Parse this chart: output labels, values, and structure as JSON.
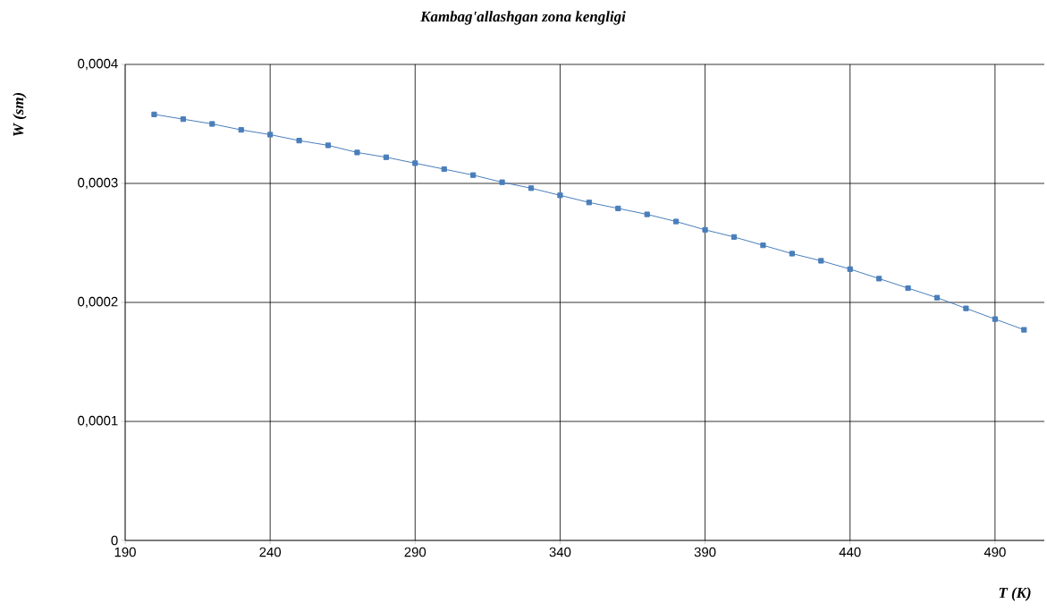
{
  "chart_data": {
    "type": "line",
    "title": "Kambag'allashgan zona kengligi",
    "xlabel": "T (K)",
    "ylabel": "W (sm)",
    "x": [
      200,
      210,
      220,
      230,
      240,
      250,
      260,
      270,
      280,
      290,
      300,
      310,
      320,
      330,
      340,
      350,
      360,
      370,
      380,
      390,
      400,
      410,
      420,
      430,
      440,
      450,
      460,
      470,
      480,
      490,
      500
    ],
    "series": [
      {
        "color": "#4a7ebb",
        "values": [
          0.000358,
          0.000354,
          0.00035,
          0.000345,
          0.000341,
          0.000336,
          0.000332,
          0.000326,
          0.000322,
          0.000317,
          0.000312,
          0.000307,
          0.000301,
          0.000296,
          0.00029,
          0.000284,
          0.000279,
          0.000274,
          0.000268,
          0.000261,
          0.000255,
          0.000248,
          0.000241,
          0.000235,
          0.000228,
          0.00022,
          0.000212,
          0.000204,
          0.000195,
          0.000186,
          0.000177
        ]
      }
    ],
    "xlim": [
      190,
      507
    ],
    "ylim": [
      0,
      0.0004
    ],
    "xticks": [
      190,
      240,
      290,
      340,
      390,
      440,
      490
    ],
    "yticks": [
      0,
      {
        "value": 0.0001,
        "label": "0,0001"
      },
      {
        "value": 0.0002,
        "label": "0,0002"
      },
      {
        "value": 0.0003,
        "label": "0,0003"
      },
      {
        "value": 0.0004,
        "label": "0,0004"
      }
    ],
    "grid": true,
    "marker": "square",
    "line_style": "solid"
  }
}
